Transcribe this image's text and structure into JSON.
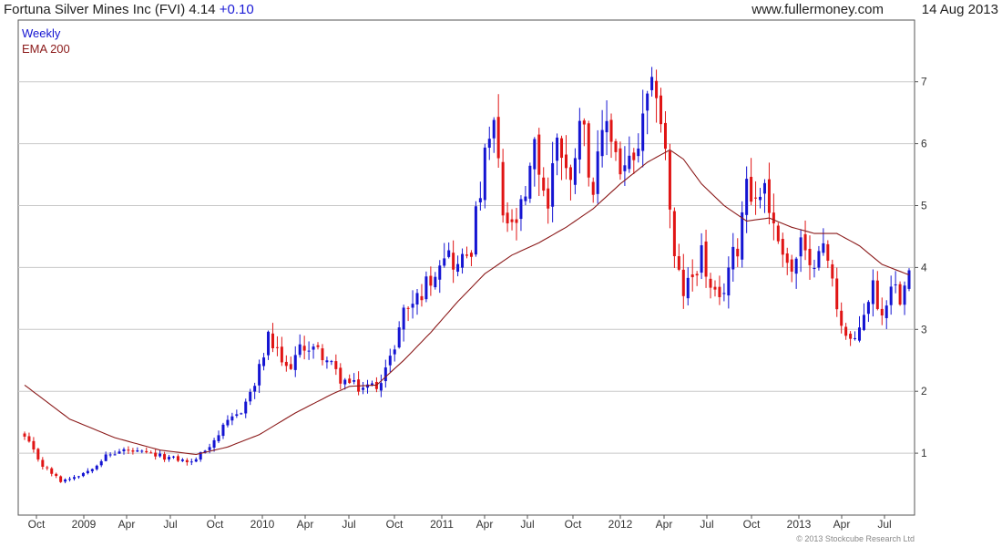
{
  "header": {
    "title": "Fortuna Silver Mines Inc (FVI) 4.14",
    "change": "+0.10",
    "site": "www.fullermoney.com",
    "date": "14 Aug 2013"
  },
  "legend": {
    "weekly": "Weekly",
    "ema": "EMA 200"
  },
  "copyright": "© 2013 Stockcube Research Ltd",
  "colors": {
    "up": "#1414d2",
    "down": "#e01414",
    "ema": "#8b1a1a",
    "grid": "#c8c8c8",
    "axis": "#555555"
  },
  "chart_data": {
    "type": "candlestick",
    "interval": "weekly",
    "period": "Oct 2008 - Aug 2013",
    "ylim": [
      0,
      7.8
    ],
    "y_ticks": [
      "1",
      "2",
      "3",
      "4",
      "5",
      "6",
      "7"
    ],
    "x_ticks": [
      "Oct",
      "2009",
      "Apr",
      "Jul",
      "Oct",
      "2010",
      "Apr",
      "Jul",
      "Oct",
      "2011",
      "Apr",
      "Jul",
      "Oct",
      "2012",
      "Apr",
      "Jul",
      "Oct",
      "2013",
      "Apr",
      "Jul"
    ],
    "close_path": [
      [
        0,
        1.25
      ],
      [
        4,
        0.8
      ],
      [
        8,
        0.55
      ],
      [
        12,
        0.65
      ],
      [
        14,
        0.72
      ],
      [
        18,
        0.95
      ],
      [
        22,
        1.05
      ],
      [
        26,
        1.0
      ],
      [
        30,
        0.95
      ],
      [
        34,
        0.9
      ],
      [
        37,
        0.85
      ],
      [
        40,
        1.05
      ],
      [
        44,
        1.4
      ],
      [
        48,
        1.7
      ],
      [
        51,
        2.1
      ],
      [
        54,
        2.85
      ],
      [
        58,
        2.35
      ],
      [
        62,
        2.75
      ],
      [
        66,
        2.6
      ],
      [
        70,
        2.2
      ],
      [
        74,
        2.05
      ],
      [
        78,
        2.1
      ],
      [
        81,
        2.5
      ],
      [
        84,
        3.3
      ],
      [
        87,
        3.5
      ],
      [
        90,
        3.85
      ],
      [
        93,
        4.3
      ],
      [
        96,
        4.0
      ],
      [
        99,
        4.35
      ],
      [
        102,
        5.7
      ],
      [
        104,
        6.3
      ],
      [
        106,
        4.85
      ],
      [
        108,
        4.6
      ],
      [
        111,
        5.05
      ],
      [
        113,
        5.9
      ],
      [
        116,
        5.0
      ],
      [
        118,
        6.2
      ],
      [
        121,
        5.3
      ],
      [
        123,
        6.6
      ],
      [
        126,
        5.25
      ],
      [
        129,
        6.4
      ],
      [
        132,
        5.6
      ],
      [
        135,
        5.65
      ],
      [
        138,
        6.6
      ],
      [
        140,
        6.95
      ],
      [
        142,
        5.85
      ],
      [
        144,
        4.1
      ],
      [
        146,
        3.6
      ],
      [
        148,
        3.85
      ],
      [
        150,
        4.25
      ],
      [
        152,
        3.6
      ],
      [
        154,
        3.4
      ],
      [
        156,
        4.0
      ],
      [
        158,
        4.35
      ],
      [
        160,
        5.5
      ],
      [
        162,
        5.05
      ],
      [
        164,
        5.4
      ],
      [
        166,
        4.6
      ],
      [
        168,
        4.35
      ],
      [
        170,
        3.9
      ],
      [
        172,
        4.4
      ],
      [
        174,
        3.9
      ],
      [
        176,
        4.45
      ],
      [
        178,
        4.1
      ],
      [
        180,
        3.4
      ],
      [
        182,
        2.9
      ],
      [
        184,
        2.75
      ],
      [
        186,
        3.3
      ],
      [
        188,
        3.7
      ],
      [
        190,
        3.2
      ],
      [
        192,
        3.8
      ],
      [
        194,
        3.55
      ],
      [
        196,
        4.14
      ]
    ],
    "ema_path": [
      [
        0,
        2.1
      ],
      [
        10,
        1.55
      ],
      [
        20,
        1.25
      ],
      [
        30,
        1.05
      ],
      [
        38,
        0.98
      ],
      [
        45,
        1.1
      ],
      [
        52,
        1.3
      ],
      [
        60,
        1.65
      ],
      [
        68,
        1.95
      ],
      [
        72,
        2.08
      ],
      [
        78,
        2.1
      ],
      [
        84,
        2.5
      ],
      [
        90,
        2.95
      ],
      [
        96,
        3.45
      ],
      [
        102,
        3.9
      ],
      [
        108,
        4.2
      ],
      [
        114,
        4.4
      ],
      [
        120,
        4.65
      ],
      [
        126,
        4.95
      ],
      [
        132,
        5.35
      ],
      [
        138,
        5.7
      ],
      [
        143,
        5.9
      ],
      [
        146,
        5.75
      ],
      [
        150,
        5.35
      ],
      [
        155,
        5.0
      ],
      [
        160,
        4.75
      ],
      [
        165,
        4.8
      ],
      [
        170,
        4.65
      ],
      [
        175,
        4.55
      ],
      [
        180,
        4.55
      ],
      [
        185,
        4.35
      ],
      [
        190,
        4.05
      ],
      [
        196,
        3.88
      ]
    ]
  }
}
